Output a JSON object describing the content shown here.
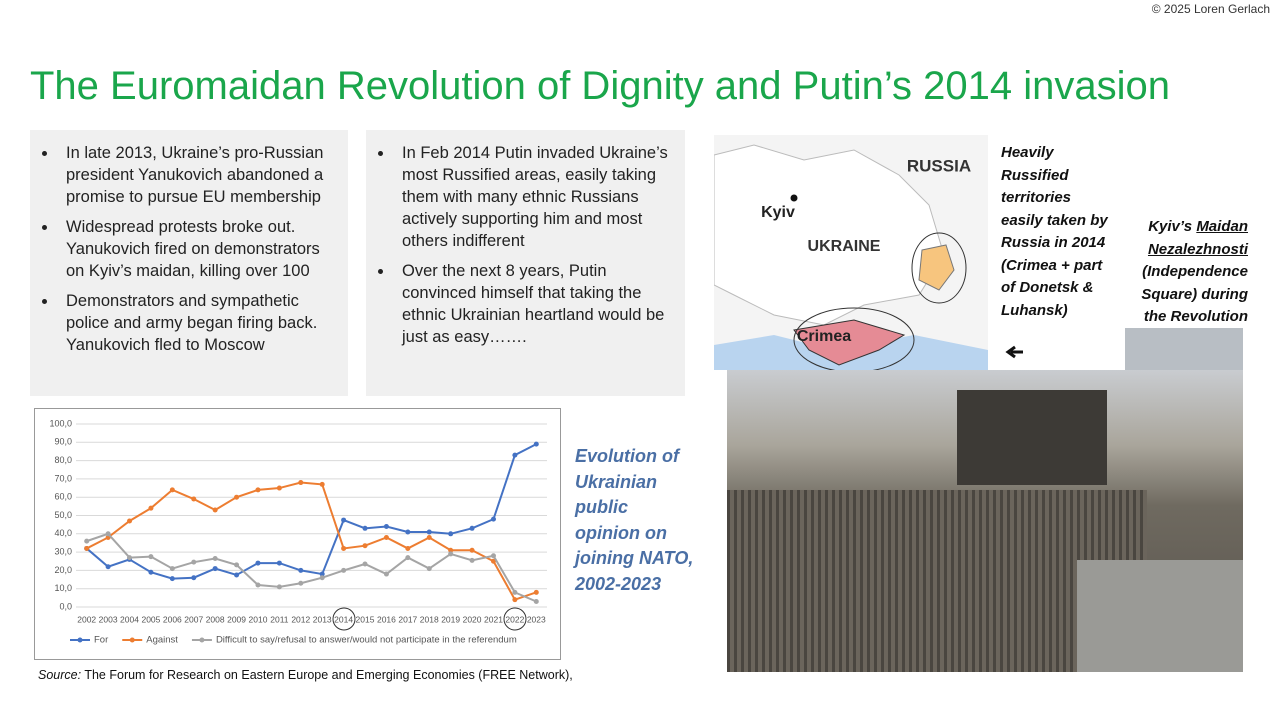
{
  "copyright": "© 2025 Loren Gerlach",
  "title": "The Euromaidan Revolution of Dignity and Putin’s 2014 invasion",
  "left_bullets": [
    "In late 2013, Ukraine’s pro-Russian president Yanukovich abandoned a promise to pursue EU membership",
    "Widespread protests broke out. Yanukovich fired on demonstrators on Kyiv’s maidan, killing over 100",
    "Demonstrators and sympathetic police and army began firing back. Yanukovich fled to Moscow"
  ],
  "right_bullets": [
    "In Feb 2014 Putin invaded Ukraine’s most Russified areas, easily taking them with many ethnic Russians actively supporting him and most others indifferent",
    "Over the next 8 years, Putin convinced himself that taking the ethnic Ukrainian heartland would be just as easy……."
  ],
  "map": {
    "labels": [
      "RUSSIA",
      "Kyiv",
      "UKRAINE",
      "Crimea"
    ]
  },
  "map_caption": "Heavily Russified territories easily taken by Russia in 2014 (Crimea + part of Donetsk & Luhansk)",
  "photo_caption": {
    "prefix": "Kyiv’s ",
    "underlined": "Maidan Nezalezhnosti",
    "suffix": "(Independence Square) during the Revolution"
  },
  "chart_caption": "Evolution of Ukrainian public opinion on joining NATO, 2002-2023",
  "source": {
    "label": "Source:",
    "text": "The Forum for Research on Eastern Europe and Emerging Economies (FREE Network),"
  },
  "chart_data": {
    "type": "line",
    "categories": [
      "2002",
      "2003",
      "2004",
      "2005",
      "2006",
      "2007",
      "2008",
      "2009",
      "2010",
      "2011",
      "2012",
      "2013",
      "2014",
      "2015",
      "2016",
      "2017",
      "2018",
      "2019",
      "2020",
      "2021",
      "2022",
      "2023"
    ],
    "series": [
      {
        "name": "For",
        "color": "#4472c4",
        "values": [
          32,
          22,
          26,
          19,
          15.5,
          16,
          21,
          17.5,
          24,
          24,
          20,
          18,
          47.5,
          43,
          44,
          41,
          41,
          40,
          43,
          48,
          83,
          89
        ]
      },
      {
        "name": "Against",
        "color": "#ed7d31",
        "values": [
          32,
          38,
          47,
          54,
          64,
          59,
          53,
          60,
          64,
          65,
          68,
          67,
          32,
          33.5,
          38,
          32,
          38,
          31,
          31,
          25,
          4,
          8
        ]
      },
      {
        "name": "Difficult to say/refusal to answer/would not participate in the referendum",
        "color": "#a5a5a5",
        "values": [
          36,
          40,
          27,
          27.5,
          21,
          24.5,
          26.5,
          23,
          12,
          11,
          13,
          16,
          20,
          23.5,
          18,
          27,
          21,
          29,
          25.5,
          28,
          8,
          3
        ]
      }
    ],
    "ylim": [
      0,
      100
    ],
    "yticks": [
      {
        "value": 0,
        "label": "0,0"
      },
      {
        "value": 10,
        "label": "10,0"
      },
      {
        "value": 20,
        "label": "20,0"
      },
      {
        "value": 30,
        "label": "30,0"
      },
      {
        "value": 40,
        "label": "40,0"
      },
      {
        "value": 50,
        "label": "50,0"
      },
      {
        "value": 60,
        "label": "60,0"
      },
      {
        "value": 70,
        "label": "70,0"
      },
      {
        "value": 80,
        "label": "80,0"
      },
      {
        "value": 90,
        "label": "90,0"
      },
      {
        "value": 100,
        "label": "100,0"
      }
    ],
    "grid": true,
    "legend": "bottom"
  }
}
